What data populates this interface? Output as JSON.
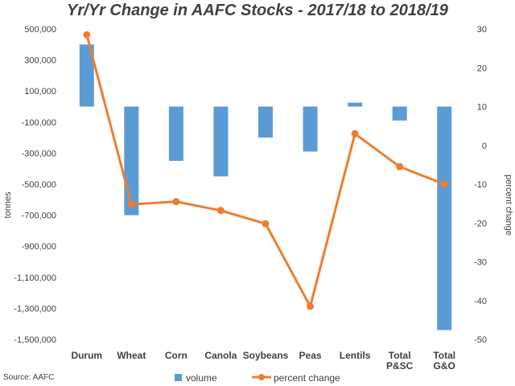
{
  "chart_data": {
    "type": "bar",
    "title": "Yr/Yr Change in AAFC Stocks - 2017/18 to 2018/19",
    "categories": [
      "Durum",
      "Wheat",
      "Corn",
      "Canola",
      "Soybeans",
      "Peas",
      "Lentils",
      "Total\nP&SC",
      "Total\nG&O"
    ],
    "series": [
      {
        "name": "volume",
        "type": "bar",
        "axis": "left",
        "color": "#5B9BD5",
        "values": [
          400000,
          -700000,
          -350000,
          -450000,
          -200000,
          -290000,
          25000,
          -90000,
          -1440000
        ]
      },
      {
        "name": "percent change",
        "type": "line",
        "axis": "right",
        "color": "#ED7D31",
        "values": [
          28.5,
          -15.2,
          -14.5,
          -16.8,
          -20.2,
          -41.5,
          3.0,
          -5.5,
          -10.0
        ]
      }
    ],
    "left_axis": {
      "label": "tonnes",
      "ylim": [
        -1500000,
        500000
      ],
      "tick_values": [
        500000,
        300000,
        100000,
        -100000,
        -300000,
        -500000,
        -700000,
        -900000,
        -1100000,
        -1300000,
        -1500000
      ],
      "tick_labels": [
        "500,000",
        "300,000",
        "100,000",
        "-100,000",
        "-300,000",
        "-500,000",
        "-700,000",
        "-900,000",
        "-1,100,000",
        "-1,300,000",
        "-1,500,000"
      ]
    },
    "right_axis": {
      "label": "percent change",
      "ylim": [
        -50,
        30
      ],
      "tick_values": [
        30,
        20,
        10,
        0,
        -10,
        -20,
        -30,
        -40,
        -50
      ],
      "tick_labels": [
        "30",
        "20",
        "10",
        "0",
        "-10",
        "-20",
        "-30",
        "-40",
        "-50"
      ]
    },
    "grid": false,
    "legend_position": "bottom",
    "source": "Source: AAFC"
  }
}
